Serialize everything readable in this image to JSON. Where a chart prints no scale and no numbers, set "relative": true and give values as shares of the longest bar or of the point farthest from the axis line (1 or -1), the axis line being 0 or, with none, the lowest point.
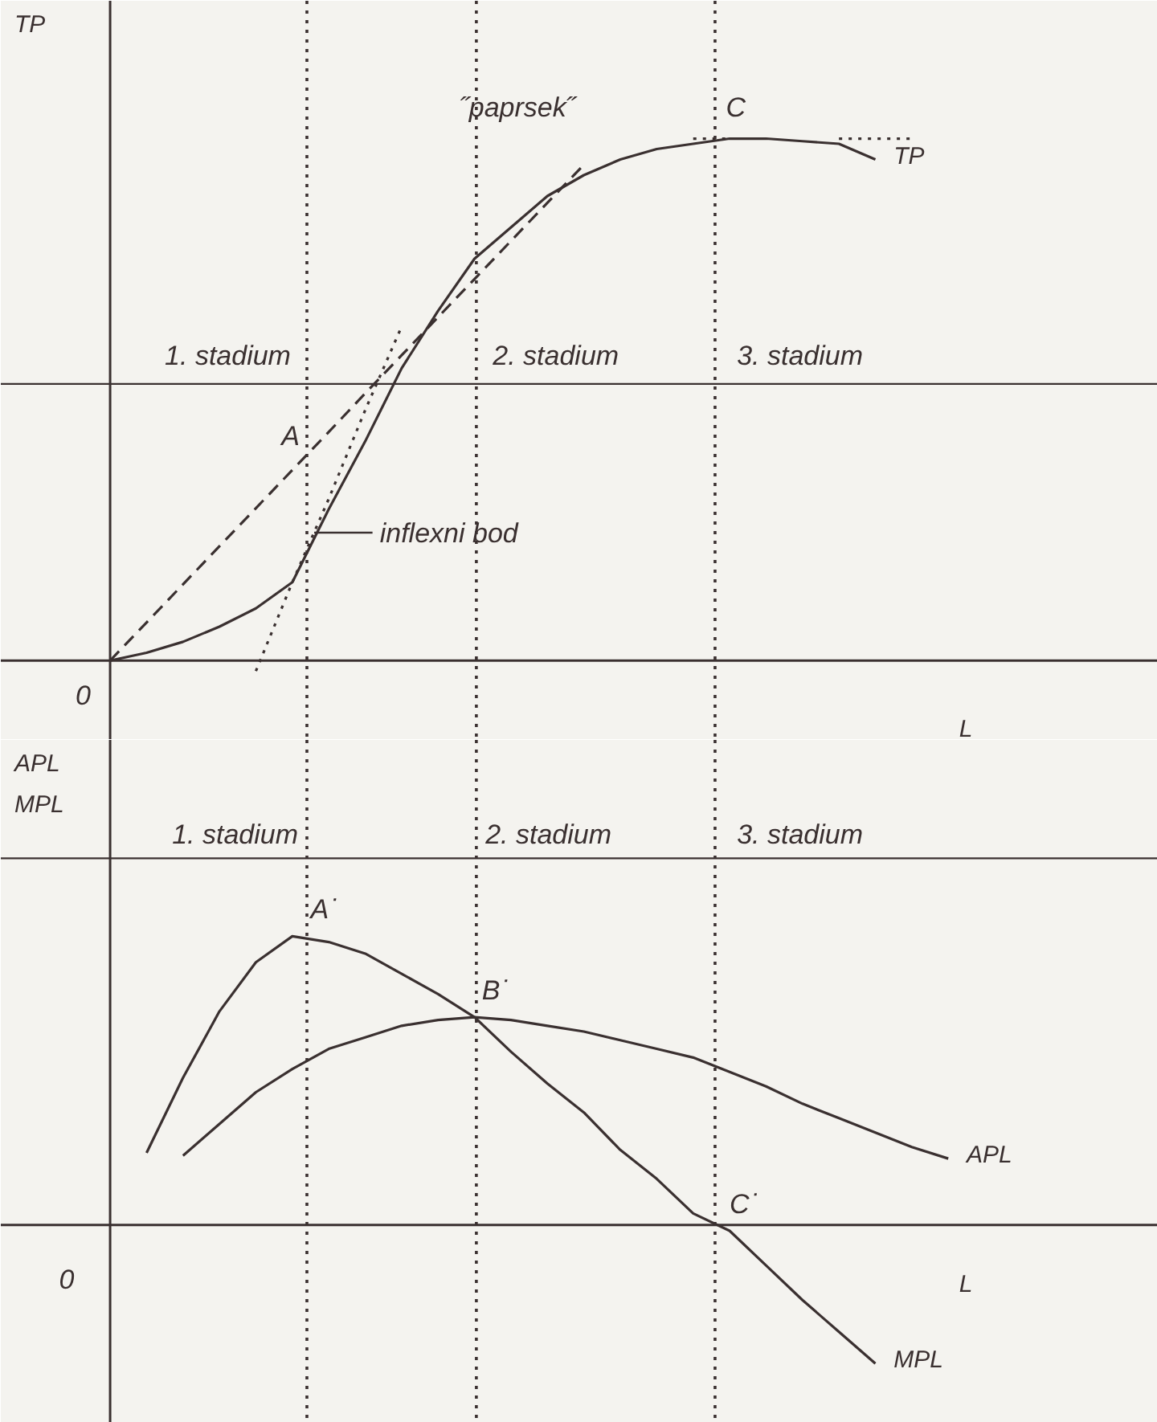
{
  "chart_data": [
    {
      "type": "line",
      "relative": true,
      "ylabel": "TP",
      "xlabel": "L",
      "legend": false,
      "grid": false,
      "categories": [
        null,
        null,
        null,
        null,
        null,
        null,
        null,
        null,
        null,
        null,
        null,
        null,
        null,
        null,
        null,
        null,
        null,
        null,
        null,
        null,
        null,
        null,
        null,
        null,
        null
      ],
      "series": [
        {
          "name": "TP",
          "color": "#3a3030",
          "line_style": "solid",
          "values": [
            0,
            0.015,
            0.036,
            0.065,
            0.1,
            0.15,
            0.29,
            0.42,
            0.56,
            0.67,
            0.77,
            0.83,
            0.89,
            0.93,
            0.96,
            0.98,
            0.99,
            1.0,
            1.0,
            0.995,
            0.99,
            0.96,
            null,
            null,
            null
          ]
        },
        {
          "color": "#3a3030",
          "line_style": "dashed",
          "values": [
            0,
            0.073,
            0.146,
            0.219,
            0.292,
            0.365,
            0.438,
            0.512,
            0.585,
            0.658,
            0.731,
            0.804,
            0.877,
            0.95,
            null,
            null,
            null,
            null,
            null,
            null,
            null,
            null,
            null,
            null,
            null
          ]
        },
        {
          "color": "#3a3030",
          "line_style": "dotted",
          "values": [
            null,
            null,
            null,
            null,
            -0.02,
            0.15,
            0.31,
            0.48,
            0.64,
            null,
            null,
            null,
            null,
            null,
            null,
            null,
            null,
            null,
            null,
            null,
            null,
            null,
            null,
            null,
            null
          ]
        },
        {
          "color": "#3a3030",
          "line_style": "dotted",
          "values": [
            null,
            null,
            null,
            null,
            null,
            null,
            null,
            null,
            null,
            null,
            null,
            null,
            null,
            null,
            null,
            null,
            1.0,
            1.0,
            null,
            null,
            1.0,
            1.0,
            1.0,
            null,
            null
          ]
        }
      ],
      "ref_lines": [
        {
          "axis": "y",
          "value": 0.53,
          "line_style": "solid"
        }
      ],
      "annotations": [
        "˝paprsek˝",
        "C",
        "A",
        "inflexni bod",
        "1. stadium",
        "2. stadium",
        "3. stadium",
        "0"
      ]
    },
    {
      "type": "line",
      "relative": true,
      "ylabel": "APL\nMPL",
      "xlabel": "L",
      "legend": false,
      "grid": false,
      "categories": [
        null,
        null,
        null,
        null,
        null,
        null,
        null,
        null,
        null,
        null,
        null,
        null,
        null,
        null,
        null,
        null,
        null,
        null,
        null,
        null,
        null,
        null,
        null,
        null,
        null
      ],
      "series": [
        {
          "name": "MPL",
          "color": "#3a3030",
          "line_style": "solid",
          "values": [
            null,
            0.25,
            0.51,
            0.74,
            0.91,
            1.0,
            0.98,
            0.94,
            0.87,
            0.8,
            0.72,
            0.6,
            0.49,
            0.39,
            0.26,
            0.16,
            0.04,
            -0.02,
            -0.14,
            -0.26,
            -0.37,
            -0.48,
            null,
            null,
            null
          ]
        },
        {
          "name": "APL",
          "color": "#3a3030",
          "line_style": "solid",
          "values": [
            null,
            null,
            0.24,
            0.35,
            0.46,
            0.54,
            0.61,
            0.65,
            0.69,
            0.71,
            0.72,
            0.71,
            0.69,
            0.67,
            0.64,
            0.61,
            0.58,
            0.53,
            0.48,
            0.42,
            0.37,
            0.32,
            0.27,
            0.23,
            null
          ]
        }
      ],
      "ref_lines": [
        {
          "axis": "y",
          "value": 1.27,
          "line_style": "solid"
        }
      ],
      "annotations": [
        "A˙",
        "B˙",
        "C˙",
        "1. stadium",
        "2. stadium",
        "3. stadium",
        "0"
      ]
    }
  ]
}
